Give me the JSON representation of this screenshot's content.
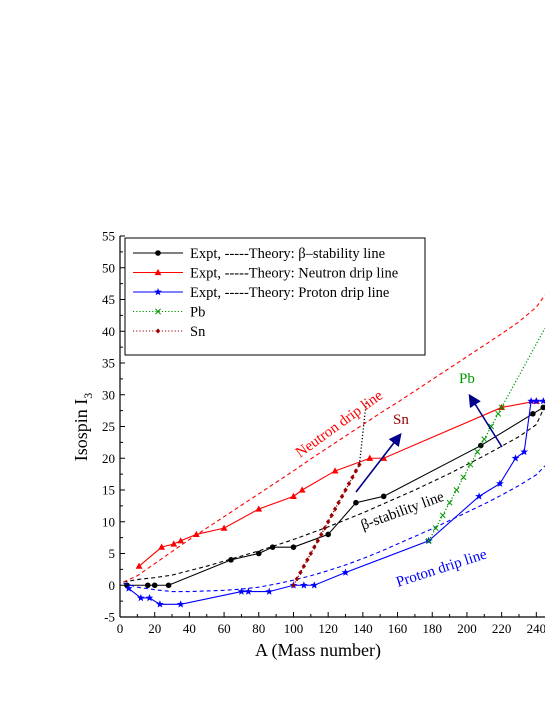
{
  "chart_data": {
    "type": "line",
    "xlabel": "A (Mass number)",
    "ylabel_main": "Isospin I",
    "ylabel_sub": "3",
    "xlim": [
      0,
      245
    ],
    "ylim": [
      -5,
      55
    ],
    "x_ticks": [
      0,
      20,
      40,
      60,
      80,
      100,
      120,
      140,
      160,
      180,
      200,
      220,
      240
    ],
    "x_tick_labels": [
      "0",
      "20",
      "40",
      "60",
      "80",
      "100",
      "120",
      "140",
      "160",
      "180",
      "200",
      "220",
      "240"
    ],
    "y_ticks": [
      -5,
      0,
      5,
      10,
      15,
      20,
      25,
      30,
      35,
      40,
      45,
      50,
      55
    ],
    "y_tick_labels": [
      "-5",
      "0",
      "5",
      "10",
      "15",
      "20",
      "25",
      "30",
      "35",
      "40",
      "45",
      "50",
      "55"
    ],
    "grid": false,
    "legend_position": "top-left",
    "legend": [
      {
        "label": "Expt, -----Theory: β–stability line",
        "color": "#000000",
        "marker": "circle",
        "style": "solid"
      },
      {
        "label": "Expt, -----Theory: Neutron drip line",
        "color": "#ff0000",
        "marker": "triangle",
        "style": "solid"
      },
      {
        "label": "Expt, -----Theory: Proton drip line",
        "color": "#0000ff",
        "marker": "star",
        "style": "solid"
      },
      {
        "label": "Pb",
        "color": "#009900",
        "marker": "x",
        "style": "dotted"
      },
      {
        "label": "Sn",
        "color": "#990000",
        "marker": "diamond",
        "style": "dotted"
      }
    ],
    "series": [
      {
        "name": "β–stability line (Expt)",
        "color": "#000000",
        "style": "solid",
        "marker": "circle",
        "x": [
          4,
          16,
          20,
          28,
          64,
          80,
          88,
          100,
          120,
          136,
          152,
          208,
          238,
          244
        ],
        "y": [
          0,
          0,
          0,
          0,
          4,
          5,
          6,
          6,
          8,
          13,
          14,
          22,
          27,
          28
        ]
      },
      {
        "name": "β–stability line (Theory)",
        "color": "#000000",
        "style": "dashed",
        "marker": "none",
        "x": [
          2,
          10,
          20,
          30,
          40,
          50,
          60,
          70,
          80,
          90,
          100,
          110,
          120,
          130,
          140,
          150,
          160,
          170,
          180,
          190,
          200,
          210,
          220,
          230,
          240,
          245
        ],
        "y": [
          0.5,
          0.9,
          1.2,
          1.6,
          2.3,
          3.0,
          3.8,
          4.6,
          5.4,
          6.3,
          7.2,
          8.2,
          9.2,
          10.3,
          11.4,
          12.6,
          13.8,
          15.0,
          16.3,
          17.6,
          19.0,
          20.4,
          21.9,
          23.4,
          25.3,
          28.3
        ]
      },
      {
        "name": "Neutron drip line (Expt)",
        "color": "#ff0000",
        "style": "solid",
        "marker": "triangle",
        "x": [
          11,
          24,
          31,
          35,
          44,
          60,
          80,
          100,
          105,
          124,
          144,
          152,
          220,
          240
        ],
        "y": [
          3,
          6,
          6.5,
          7,
          8,
          9,
          12,
          14,
          15,
          18,
          20,
          20,
          28,
          29
        ]
      },
      {
        "name": "Neutron drip line (Theory)",
        "color": "#ff0000",
        "style": "dashed",
        "marker": "none",
        "x": [
          2,
          10,
          20,
          30,
          40,
          50,
          60,
          70,
          80,
          90,
          100,
          110,
          120,
          130,
          140,
          150,
          160,
          170,
          180,
          190,
          200,
          210,
          220,
          230,
          240,
          245
        ],
        "y": [
          0.5,
          1.5,
          3.4,
          5.3,
          7.2,
          9.0,
          10.8,
          12.6,
          14.4,
          16.2,
          18.0,
          19.9,
          21.7,
          23.5,
          25.3,
          27.1,
          28.8,
          30.6,
          32.4,
          34.2,
          36.0,
          37.8,
          39.6,
          41.5,
          43.8,
          45.7
        ]
      },
      {
        "name": "Proton drip line (Expt)",
        "color": "#0000ff",
        "style": "solid",
        "marker": "star",
        "x": [
          5,
          12,
          17,
          23,
          35,
          70,
          74,
          86,
          100,
          106,
          112,
          130,
          178,
          207,
          219,
          228,
          233,
          237,
          240,
          244
        ],
        "y": [
          -0.5,
          -2,
          -2,
          -3,
          -3,
          -1,
          -1,
          -1,
          0,
          0,
          0,
          2,
          7,
          14,
          16,
          20,
          21,
          29,
          29,
          29
        ]
      },
      {
        "name": "Proton drip line (Theory)",
        "color": "#0000ff",
        "style": "dashed",
        "marker": "none",
        "x": [
          2,
          10,
          20,
          30,
          40,
          50,
          60,
          70,
          80,
          90,
          100,
          110,
          120,
          130,
          140,
          150,
          160,
          170,
          180,
          190,
          200,
          210,
          220,
          230,
          240,
          245
        ],
        "y": [
          0.3,
          -0.3,
          -0.7,
          -1.0,
          -1.0,
          -0.9,
          -0.8,
          -0.6,
          -0.3,
          0.2,
          0.8,
          1.5,
          2.3,
          3.2,
          4.2,
          5.3,
          6.5,
          7.7,
          8.9,
          10.2,
          11.5,
          12.8,
          14.2,
          15.7,
          17.4,
          18.8
        ]
      },
      {
        "name": "Pb",
        "color": "#009900",
        "style": "dotted",
        "marker": "x",
        "x": [
          178,
          182,
          186,
          190,
          194,
          198,
          202,
          206,
          210,
          214,
          218,
          220
        ],
        "y": [
          7,
          9,
          11,
          13,
          15,
          17,
          19,
          21,
          23,
          25,
          27,
          28
        ]
      },
      {
        "name": "Pb (extrapolation)",
        "color": "#009900",
        "style": "dotted",
        "marker": "none",
        "x": [
          220,
          245
        ],
        "y": [
          28,
          40.5
        ]
      },
      {
        "name": "Sn",
        "color": "#990000",
        "style": "dotted",
        "marker": "diamond",
        "x": [
          100,
          102,
          104,
          106,
          108,
          110,
          112,
          114,
          116,
          118,
          120,
          122,
          124,
          126,
          128,
          130,
          132,
          134,
          136,
          138
        ],
        "y": [
          0,
          1,
          2,
          3,
          4,
          5,
          6,
          7,
          8,
          9,
          10,
          11,
          12,
          13,
          14,
          15,
          16,
          17,
          18,
          19
        ]
      },
      {
        "name": "Sn (extrapolation)",
        "color": "#000000",
        "style": "dotted",
        "marker": "none",
        "x": [
          138,
          142
        ],
        "y": [
          19,
          29
        ]
      }
    ],
    "annotations": [
      {
        "text": "Neutron drip line",
        "color": "#ff0000"
      },
      {
        "text": "β-stability line",
        "color": "#000000"
      },
      {
        "text": "Proton drip line",
        "color": "#0000ff"
      },
      {
        "text": "Sn",
        "color": "#990000"
      },
      {
        "text": "Pb",
        "color": "#009900"
      }
    ]
  }
}
